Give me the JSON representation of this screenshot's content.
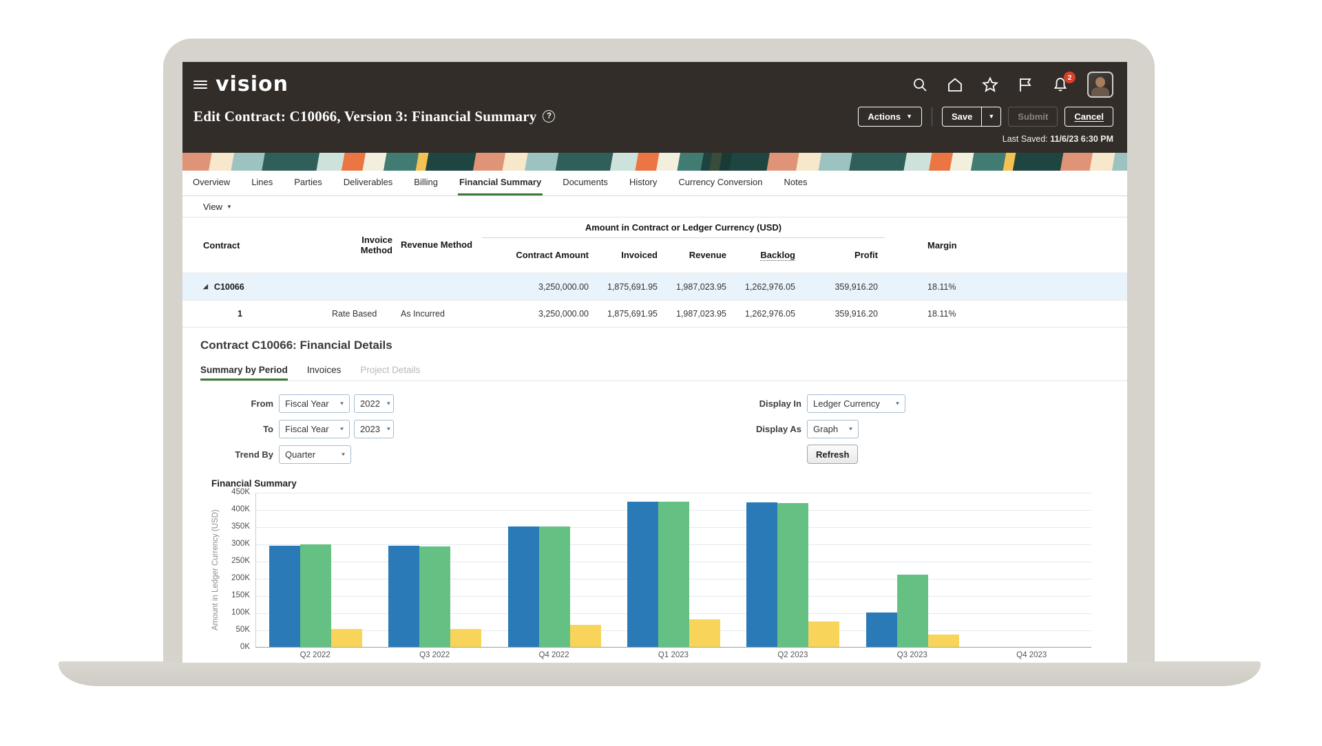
{
  "header": {
    "logo": "vision",
    "title": "Edit Contract: C10066, Version 3: Financial Summary",
    "help_glyph": "?",
    "bell_badge": "2",
    "actions_label": "Actions",
    "save_label": "Save",
    "submit_label": "Submit",
    "cancel_label": "Cancel",
    "last_saved_label": "Last Saved:",
    "last_saved_value": "11/6/23 6:30 PM"
  },
  "main_tabs": [
    "Overview",
    "Lines",
    "Parties",
    "Deliverables",
    "Billing",
    "Financial Summary",
    "Documents",
    "History",
    "Currency Conversion",
    "Notes"
  ],
  "active_main_tab": "Financial Summary",
  "view_menu_label": "View",
  "summary_table": {
    "group_header": "Amount in Contract or Ledger Currency (USD)",
    "col_contract": "Contract",
    "col_invoice_method": "Invoice Method",
    "col_revenue_method": "Revenue Method",
    "col_contract_amount": "Contract Amount",
    "col_invoiced": "Invoiced",
    "col_revenue": "Revenue",
    "col_backlog": "Backlog",
    "col_profit": "Profit",
    "col_margin": "Margin",
    "rows": [
      {
        "is_parent": true,
        "contract": "C10066",
        "invoice_method": "",
        "revenue_method": "",
        "contract_amount": "3,250,000.00",
        "invoiced": "1,875,691.95",
        "revenue": "1,987,023.95",
        "backlog": "1,262,976.05",
        "profit": "359,916.20",
        "margin": "18.11%"
      },
      {
        "is_parent": false,
        "contract": "1",
        "invoice_method": "Rate Based",
        "revenue_method": "As Incurred",
        "contract_amount": "3,250,000.00",
        "invoiced": "1,875,691.95",
        "revenue": "1,987,023.95",
        "backlog": "1,262,976.05",
        "profit": "359,916.20",
        "margin": "18.11%"
      }
    ]
  },
  "details": {
    "heading": "Contract C10066: Financial Details",
    "tabs": [
      {
        "label": "Summary by Period",
        "state": "active"
      },
      {
        "label": "Invoices",
        "state": "normal"
      },
      {
        "label": "Project Details",
        "state": "disabled"
      }
    ],
    "filters": {
      "from_label": "From",
      "from_period": "Fiscal Year",
      "from_year": "2022",
      "to_label": "To",
      "to_period": "Fiscal Year",
      "to_year": "2023",
      "trend_by_label": "Trend By",
      "trend_by_value": "Quarter",
      "display_in_label": "Display In",
      "display_in_value": "Ledger Currency",
      "display_as_label": "Display As",
      "display_as_value": "Graph",
      "refresh_label": "Refresh"
    }
  },
  "chart_data": {
    "type": "bar",
    "title": "Financial Summary",
    "ylabel": "Amount in Ledger Currency (USD)",
    "xlabel": "",
    "categories": [
      "Q2 2022",
      "Q3 2022",
      "Q4 2022",
      "Q1 2023",
      "Q2 2023",
      "Q3 2023",
      "Q4 2023"
    ],
    "series": [
      {
        "name": "blue",
        "color": "#2a7ab8",
        "values": [
          293000,
          293000,
          350000,
          422000,
          419000,
          99000,
          0
        ]
      },
      {
        "name": "green",
        "color": "#65c183",
        "values": [
          297000,
          291000,
          349000,
          421000,
          418000,
          209000,
          0
        ]
      },
      {
        "name": "yellow",
        "color": "#f9d45a",
        "values": [
          51000,
          51000,
          63000,
          79000,
          74000,
          36000,
          0
        ]
      }
    ],
    "ylim": [
      0,
      450000
    ],
    "ytick_step": 50000,
    "ytick_labels_top_to_bottom": [
      "450K",
      "400K",
      "350K",
      "300K",
      "250K",
      "200K",
      "150K",
      "100K",
      "50K",
      "0K"
    ],
    "grid": true,
    "legend_position": "none-visible"
  },
  "colors": {
    "header_bg": "#322d29",
    "active_tab_underline": "#3c7b3c",
    "parent_row_bg": "#e9f3fc",
    "badge_red": "#d7402a",
    "laptop_frame": "#d6d2cc"
  }
}
